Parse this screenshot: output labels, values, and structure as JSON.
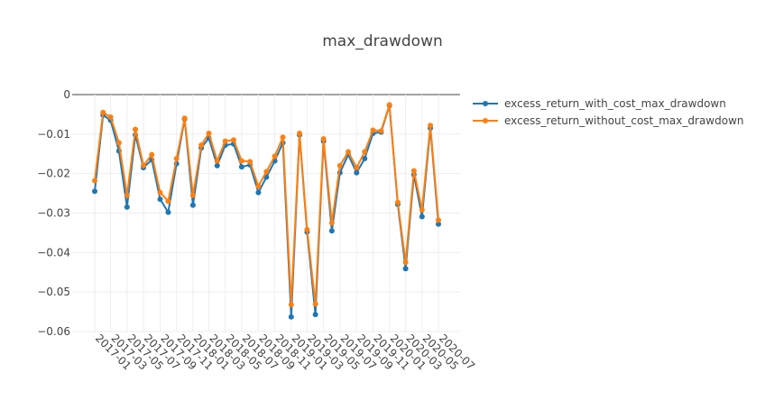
{
  "chart_data": {
    "type": "line",
    "title": "max_drawdown",
    "xlabel": "",
    "ylabel": "",
    "ylim": [
      -0.06,
      0.0
    ],
    "y_ticks": [
      0,
      -0.01,
      -0.02,
      -0.03,
      -0.04,
      -0.05,
      -0.06
    ],
    "y_tick_labels": [
      "0",
      "−0.01",
      "−0.02",
      "−0.03",
      "−0.04",
      "−0.05",
      "−0.06"
    ],
    "x_tick_labels": [
      "2017-01",
      "2017-03",
      "2017-05",
      "2017-07",
      "2017-09",
      "2017-11",
      "2018-01",
      "2018-03",
      "2018-05",
      "2018-07",
      "2018-09",
      "2018-11",
      "2019-01",
      "2019-03",
      "2019-05",
      "2019-07",
      "2019-09",
      "2019-11",
      "2020-01",
      "2020-03",
      "2020-05",
      "2020-07"
    ],
    "x": [
      "2017-01",
      "2017-02",
      "2017-03",
      "2017-04",
      "2017-05",
      "2017-06",
      "2017-07",
      "2017-08",
      "2017-09",
      "2017-10",
      "2017-11",
      "2017-12",
      "2018-01",
      "2018-02",
      "2018-03",
      "2018-04",
      "2018-05",
      "2018-06",
      "2018-07",
      "2018-08",
      "2018-09",
      "2018-10",
      "2018-11",
      "2018-12",
      "2019-01",
      "2019-02",
      "2019-03",
      "2019-04",
      "2019-05",
      "2019-06",
      "2019-07",
      "2019-08",
      "2019-09",
      "2019-10",
      "2019-11",
      "2019-12",
      "2020-01",
      "2020-02",
      "2020-03",
      "2020-04",
      "2020-05",
      "2020-06",
      "2020-07"
    ],
    "series": [
      {
        "name": "excess_return_with_cost_max_drawdown",
        "color": "#1f77b4",
        "values": [
          -0.0245,
          -0.0052,
          -0.0065,
          -0.0143,
          -0.0285,
          -0.0102,
          -0.0185,
          -0.0165,
          -0.0265,
          -0.0298,
          -0.0175,
          -0.0062,
          -0.028,
          -0.0135,
          -0.011,
          -0.018,
          -0.0128,
          -0.0125,
          -0.0183,
          -0.0178,
          -0.0248,
          -0.0209,
          -0.0168,
          -0.0122,
          -0.0563,
          -0.0102,
          -0.0348,
          -0.0557,
          -0.0118,
          -0.0345,
          -0.0198,
          -0.0152,
          -0.0198,
          -0.0162,
          -0.0098,
          -0.0095,
          -0.0028,
          -0.0278,
          -0.0441,
          -0.0203,
          -0.0309,
          -0.0085,
          -0.0328
        ]
      },
      {
        "name": "excess_return_without_cost_max_drawdown",
        "color": "#ff7f0e",
        "values": [
          -0.0218,
          -0.0045,
          -0.0057,
          -0.0122,
          -0.0255,
          -0.0088,
          -0.018,
          -0.0152,
          -0.0248,
          -0.027,
          -0.0162,
          -0.006,
          -0.0255,
          -0.0128,
          -0.0098,
          -0.0168,
          -0.0118,
          -0.0115,
          -0.0168,
          -0.017,
          -0.0232,
          -0.0195,
          -0.0156,
          -0.0108,
          -0.0532,
          -0.0098,
          -0.0342,
          -0.053,
          -0.0112,
          -0.0325,
          -0.018,
          -0.0145,
          -0.0185,
          -0.0145,
          -0.009,
          -0.0092,
          -0.0026,
          -0.0273,
          -0.0425,
          -0.0193,
          -0.0292,
          -0.0078,
          -0.0318
        ]
      }
    ],
    "legend_position": "top-right",
    "grid": true
  }
}
